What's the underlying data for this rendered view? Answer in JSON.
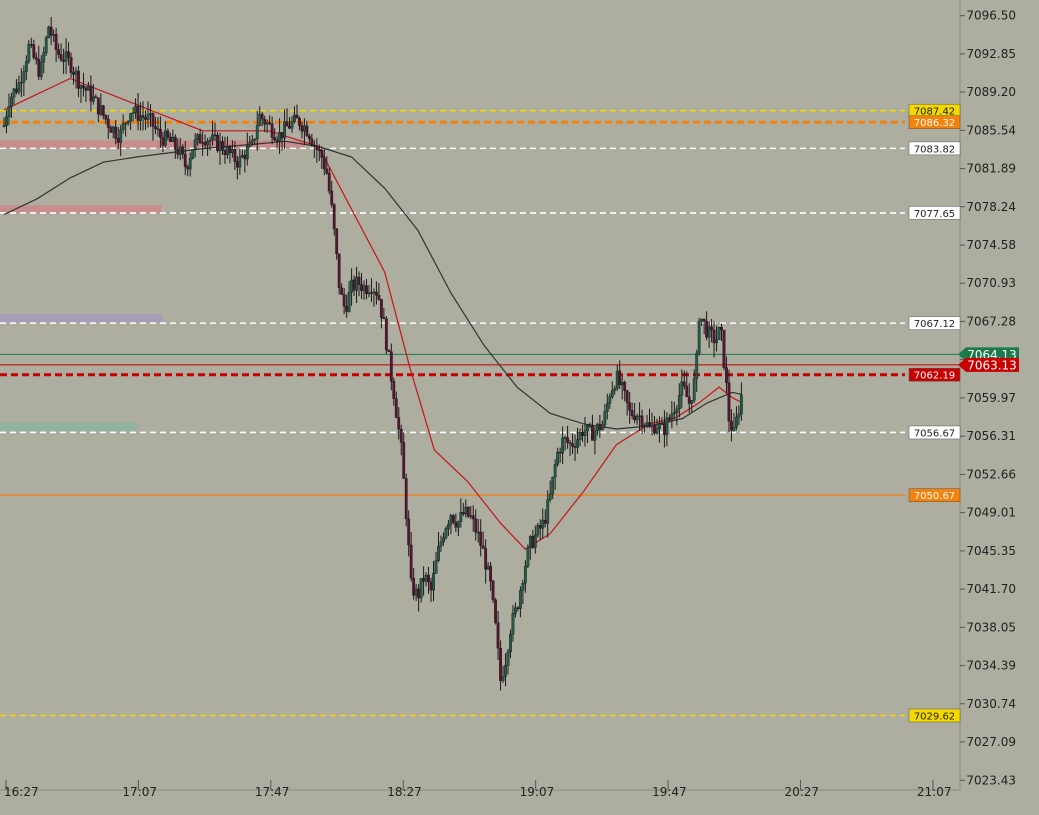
{
  "colors": {
    "background": "#adada0",
    "axis_text": "#222222",
    "up_candle": "#1f5e46",
    "down_candle": "#5a1230",
    "wick": "#1a1a1a",
    "ma_fast": "#c4161c",
    "ma_slow": "#333333",
    "white_level": "#ffffff",
    "yellow_level": "#f5d800",
    "orange_level": "#f5820a",
    "red_level": "#c80000",
    "green_level": "#1a7a4c"
  },
  "chart_data": {
    "type": "candlestick",
    "title": "",
    "xlabel": "",
    "ylabel": "",
    "ylim": [
      7022.5,
      7098.0
    ],
    "xlim_minutes": [
      0,
      580
    ],
    "x_ticks": [
      "16:27",
      "17:07",
      "17:47",
      "18:27",
      "19:07",
      "19:47",
      "20:27",
      "21:07"
    ],
    "y_ticks": [
      "7096.50",
      "7092.85",
      "7089.20",
      "7085.54",
      "7081.89",
      "7078.24",
      "7074.58",
      "7070.93",
      "7067.28",
      "7063.63",
      "7059.97",
      "7056.31",
      "7052.66",
      "7049.01",
      "7045.35",
      "7041.70",
      "7038.05",
      "7034.39",
      "7030.74",
      "7027.09",
      "7023.43"
    ],
    "close_path": [
      [
        0,
        7086.0
      ],
      [
        3,
        7088.5
      ],
      [
        9,
        7090.0
      ],
      [
        15,
        7093.5
      ],
      [
        22,
        7091.0
      ],
      [
        27,
        7095.5
      ],
      [
        32,
        7093.0
      ],
      [
        40,
        7092.0
      ],
      [
        46,
        7090.0
      ],
      [
        52,
        7089.0
      ],
      [
        58,
        7087.5
      ],
      [
        64,
        7086.0
      ],
      [
        70,
        7085.0
      ],
      [
        76,
        7087.5
      ],
      [
        82,
        7087.0
      ],
      [
        88,
        7086.5
      ],
      [
        94,
        7085.0
      ],
      [
        100,
        7084.5
      ],
      [
        106,
        7083.5
      ],
      [
        110,
        7082.0
      ],
      [
        114,
        7084.0
      ],
      [
        120,
        7085.0
      ],
      [
        126,
        7084.5
      ],
      [
        132,
        7084.0
      ],
      [
        138,
        7083.0
      ],
      [
        142,
        7082.5
      ],
      [
        146,
        7083.5
      ],
      [
        150,
        7084.0
      ],
      [
        154,
        7087.0
      ],
      [
        160,
        7086.0
      ],
      [
        166,
        7085.0
      ],
      [
        172,
        7086.0
      ],
      [
        178,
        7086.5
      ],
      [
        184,
        7085.5
      ],
      [
        188,
        7084.0
      ],
      [
        192,
        7083.0
      ],
      [
        195,
        7081.5
      ],
      [
        198,
        7078.0
      ],
      [
        200,
        7075.0
      ],
      [
        203,
        7070.0
      ],
      [
        206,
        7068.5
      ],
      [
        210,
        7070.5
      ],
      [
        214,
        7071.0
      ],
      [
        218,
        7070.5
      ],
      [
        222,
        7070.8
      ],
      [
        226,
        7070.0
      ],
      [
        230,
        7066.5
      ],
      [
        233,
        7063.0
      ],
      [
        236,
        7060.0
      ],
      [
        240,
        7055.0
      ],
      [
        243,
        7049.0
      ],
      [
        246,
        7042.0
      ],
      [
        250,
        7041.0
      ],
      [
        254,
        7043.0
      ],
      [
        258,
        7041.5
      ],
      [
        262,
        7045.0
      ],
      [
        266,
        7047.5
      ],
      [
        270,
        7049.0
      ],
      [
        274,
        7048.0
      ],
      [
        278,
        7049.0
      ],
      [
        282,
        7048.5
      ],
      [
        286,
        7047.0
      ],
      [
        290,
        7045.0
      ],
      [
        294,
        7042.0
      ],
      [
        297,
        7038.0
      ],
      [
        300,
        7033.0
      ],
      [
        303,
        7035.0
      ],
      [
        306,
        7038.0
      ],
      [
        310,
        7040.0
      ],
      [
        314,
        7043.5
      ],
      [
        318,
        7046.0
      ],
      [
        322,
        7047.0
      ],
      [
        326,
        7048.0
      ],
      [
        330,
        7050.5
      ],
      [
        334,
        7054.5
      ],
      [
        338,
        7056.0
      ],
      [
        342,
        7055.5
      ],
      [
        346,
        7056.0
      ],
      [
        350,
        7057.0
      ],
      [
        354,
        7056.5
      ],
      [
        358,
        7057.0
      ],
      [
        362,
        7057.5
      ],
      [
        366,
        7060.5
      ],
      [
        370,
        7062.0
      ],
      [
        374,
        7060.5
      ],
      [
        378,
        7058.5
      ],
      [
        382,
        7058.5
      ],
      [
        386,
        7058.0
      ],
      [
        390,
        7057.0
      ],
      [
        394,
        7057.5
      ],
      [
        398,
        7056.8
      ],
      [
        402,
        7058.0
      ],
      [
        406,
        7059.5
      ],
      [
        410,
        7061.0
      ],
      [
        414,
        7059.5
      ],
      [
        418,
        7062.0
      ],
      [
        420,
        7068.0
      ],
      [
        423,
        7067.0
      ],
      [
        426,
        7066.0
      ],
      [
        430,
        7065.5
      ],
      [
        433,
        7066.5
      ],
      [
        436,
        7062.0
      ],
      [
        438,
        7058.0
      ],
      [
        441,
        7056.5
      ],
      [
        444,
        7059.0
      ],
      [
        446,
        7060.5
      ]
    ],
    "ma_fast": [
      [
        0,
        7087.5
      ],
      [
        40,
        7090.5
      ],
      [
        80,
        7088.0
      ],
      [
        120,
        7085.5
      ],
      [
        160,
        7085.5
      ],
      [
        190,
        7084.0
      ],
      [
        210,
        7078.0
      ],
      [
        230,
        7072.0
      ],
      [
        245,
        7063.0
      ],
      [
        260,
        7055.0
      ],
      [
        280,
        7052.0
      ],
      [
        300,
        7048.0
      ],
      [
        315,
        7045.5
      ],
      [
        330,
        7047.0
      ],
      [
        350,
        7051.0
      ],
      [
        370,
        7055.5
      ],
      [
        390,
        7057.5
      ],
      [
        405,
        7058.0
      ],
      [
        420,
        7059.5
      ],
      [
        432,
        7061.0
      ],
      [
        440,
        7060.0
      ],
      [
        446,
        7059.5
      ]
    ],
    "ma_slow": [
      [
        0,
        7077.5
      ],
      [
        20,
        7079.0
      ],
      [
        40,
        7081.0
      ],
      [
        60,
        7082.5
      ],
      [
        80,
        7083.0
      ],
      [
        120,
        7083.8
      ],
      [
        150,
        7084.2
      ],
      [
        170,
        7084.5
      ],
      [
        190,
        7084.0
      ],
      [
        210,
        7083.0
      ],
      [
        230,
        7080.0
      ],
      [
        250,
        7076.0
      ],
      [
        270,
        7070.0
      ],
      [
        290,
        7065.0
      ],
      [
        310,
        7061.0
      ],
      [
        330,
        7058.5
      ],
      [
        350,
        7057.5
      ],
      [
        370,
        7057.0
      ],
      [
        390,
        7057.3
      ],
      [
        410,
        7058.0
      ],
      [
        425,
        7059.5
      ],
      [
        440,
        7060.5
      ],
      [
        446,
        7060.3
      ]
    ],
    "levels": [
      {
        "label": "7087.42",
        "value": 7087.42,
        "style": "dashed",
        "color": "yellow"
      },
      {
        "label": "7086.32",
        "value": 7086.32,
        "style": "dashed-thick",
        "color": "orange"
      },
      {
        "label": "7083.82",
        "value": 7083.82,
        "style": "dashed",
        "color": "white"
      },
      {
        "label": "7077.65",
        "value": 7077.65,
        "style": "dashed",
        "color": "white"
      },
      {
        "label": "7067.12",
        "value": 7067.12,
        "style": "dashed",
        "color": "white"
      },
      {
        "label": "7062.19",
        "value": 7062.19,
        "style": "dashed-thick",
        "color": "red"
      },
      {
        "label": "7056.67",
        "value": 7056.67,
        "style": "dashed",
        "color": "white"
      },
      {
        "label": "7050.67",
        "value": 7050.67,
        "style": "solid",
        "color": "orange"
      },
      {
        "label": "7029.62",
        "value": 7029.62,
        "style": "dashed",
        "color": "yellow"
      }
    ],
    "price_markers": [
      {
        "label": "7064.13",
        "value": 7064.13,
        "color": "green"
      },
      {
        "label": "7063.13",
        "value": 7063.13,
        "color": "red"
      }
    ],
    "zones": [
      {
        "value": 7084.2,
        "x_end_minutes": 182,
        "color": "#c88c8c"
      },
      {
        "value": 7078.0,
        "x_end_minutes": 95,
        "color": "#c88c8c"
      },
      {
        "value": 7067.6,
        "x_end_minutes": 96,
        "color": "#a89cb8"
      },
      {
        "value": 7057.2,
        "x_end_minutes": 80,
        "color": "#8cb4a0"
      }
    ]
  }
}
